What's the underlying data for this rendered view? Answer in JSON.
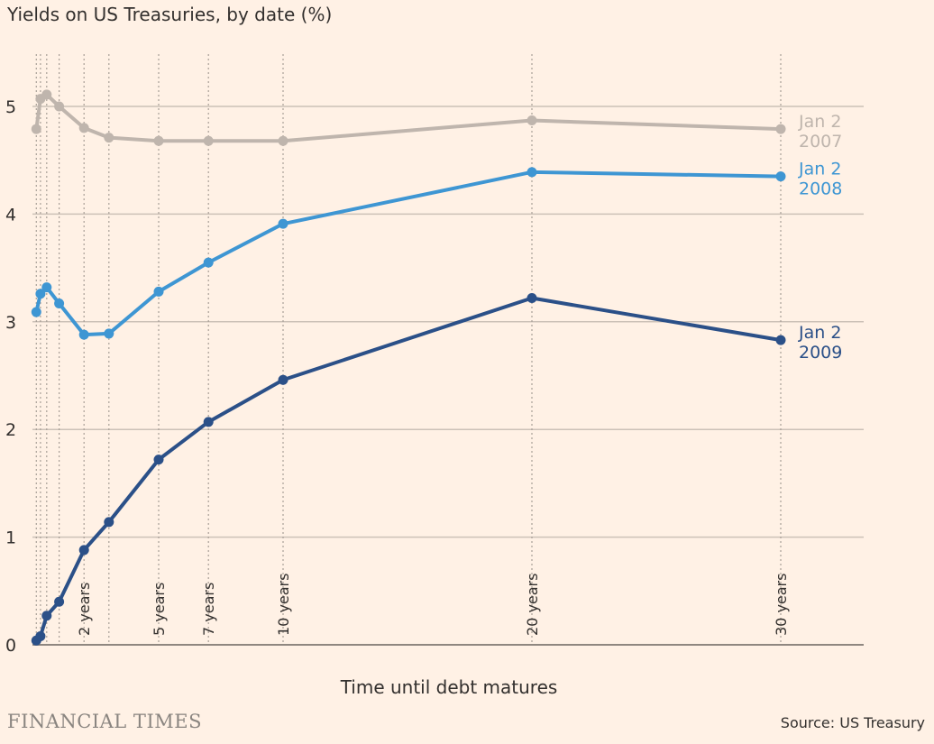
{
  "title": "Yields on US Treasuries, by date (%)",
  "source": "Source: US Treasury",
  "logo": "FINANCIAL TIMES",
  "chart_data": {
    "type": "line",
    "title": "Yields on US Treasuries, by date (%)",
    "xlabel": "Time until debt matures",
    "ylabel": "",
    "ylim": [
      0,
      5.5
    ],
    "xlim": [
      0,
      33
    ],
    "yticks": [
      0,
      1,
      2,
      3,
      4,
      5
    ],
    "x": [
      0.083,
      0.25,
      0.5,
      1,
      2,
      3,
      5,
      7,
      10,
      20,
      30
    ],
    "xtick_labels": [
      {
        "x": 2,
        "label": "2 years"
      },
      {
        "x": 5,
        "label": "5 years"
      },
      {
        "x": 7,
        "label": "7 years"
      },
      {
        "x": 10,
        "label": "10 years"
      },
      {
        "x": 20,
        "label": "20 years"
      },
      {
        "x": 30,
        "label": "30 years"
      }
    ],
    "grid": true,
    "series": [
      {
        "name": "Jan 2 2007",
        "label1": "Jan 2",
        "label2": "2007",
        "color": "#bfb5ad",
        "values": [
          4.79,
          5.07,
          5.11,
          5.0,
          4.8,
          4.71,
          4.68,
          4.68,
          4.68,
          4.87,
          4.79
        ]
      },
      {
        "name": "Jan 2 2008",
        "label1": "Jan 2",
        "label2": "2008",
        "color": "#3e96d3",
        "values": [
          3.09,
          3.26,
          3.32,
          3.17,
          2.88,
          2.89,
          3.28,
          3.55,
          3.91,
          4.39,
          4.35
        ]
      },
      {
        "name": "Jan 2 2009",
        "label1": "Jan 2",
        "label2": "2009",
        "color": "#2b5088",
        "values": [
          0.04,
          0.08,
          0.27,
          0.4,
          0.88,
          1.14,
          1.72,
          2.07,
          2.46,
          3.22,
          2.83
        ]
      }
    ]
  }
}
